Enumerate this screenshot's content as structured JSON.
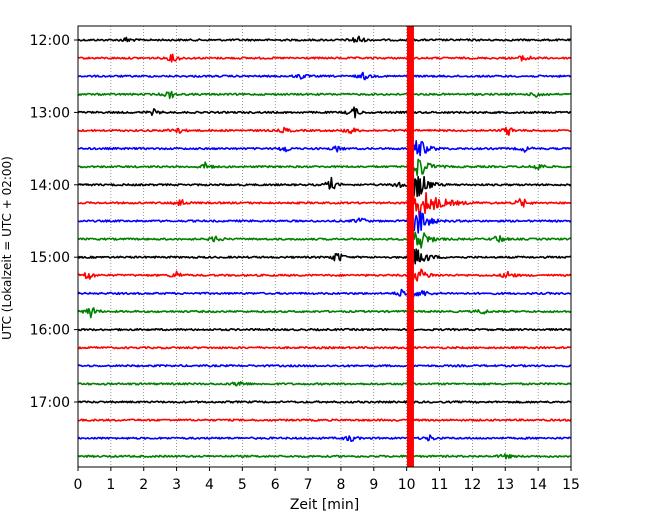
{
  "chart_data": {
    "type": "line",
    "subtype": "helicorder",
    "xlabel": "Zeit  [min]",
    "ylabel": "UTC (Lokalzeit = UTC + 02:00)",
    "xlim": [
      0,
      15
    ],
    "xticks": [
      "0",
      "1",
      "2",
      "3",
      "4",
      "5",
      "6",
      "7",
      "8",
      "9",
      "10",
      "11",
      "12",
      "13",
      "14",
      "15"
    ],
    "ytick_labels": [
      "12:00",
      "13:00",
      "14:00",
      "15:00",
      "16:00",
      "17:00"
    ],
    "ytick_rows": [
      0,
      4,
      8,
      12,
      16,
      20
    ],
    "row_minutes": 15,
    "grid": "vertical dotted",
    "colors": [
      "#000000",
      "#ff0000",
      "#0000ff",
      "#008000"
    ],
    "rows": [
      {
        "start": "12:00",
        "events": [
          {
            "x": 1.5,
            "a": 3
          },
          {
            "x": 8.5,
            "a": 6
          }
        ]
      },
      {
        "start": "12:15",
        "events": [
          {
            "x": 2.9,
            "a": 5
          },
          {
            "x": 13.6,
            "a": 5
          }
        ]
      },
      {
        "start": "12:30",
        "events": [
          {
            "x": 6.8,
            "a": 3
          },
          {
            "x": 8.7,
            "a": 4
          }
        ]
      },
      {
        "start": "12:45",
        "events": [
          {
            "x": 2.8,
            "a": 5
          },
          {
            "x": 14.0,
            "a": 4
          }
        ]
      },
      {
        "start": "13:00",
        "events": [
          {
            "x": 8.4,
            "a": 6
          },
          {
            "x": 2.3,
            "a": 3
          }
        ]
      },
      {
        "start": "13:15",
        "events": [
          {
            "x": 3.0,
            "a": 5
          },
          {
            "x": 6.3,
            "a": 3
          },
          {
            "x": 8.3,
            "a": 4
          },
          {
            "x": 13.1,
            "a": 5
          }
        ]
      },
      {
        "start": "13:30",
        "events": [
          {
            "x": 6.3,
            "a": 4
          },
          {
            "x": 7.9,
            "a": 3
          },
          {
            "x": 13.6,
            "a": 3
          }
        ]
      },
      {
        "start": "13:45",
        "events": [
          {
            "x": 3.9,
            "a": 5
          },
          {
            "x": 14.0,
            "a": 5
          }
        ]
      },
      {
        "start": "14:00",
        "events": [
          {
            "x": 7.7,
            "a": 7
          },
          {
            "x": 9.8,
            "a": 5
          }
        ]
      },
      {
        "start": "14:15",
        "events": [
          {
            "x": 3.1,
            "a": 5
          },
          {
            "x": 13.5,
            "a": 6
          }
        ]
      },
      {
        "start": "14:30",
        "events": [
          {
            "x": 8.6,
            "a": 4
          }
        ]
      },
      {
        "start": "14:45",
        "events": [
          {
            "x": 4.2,
            "a": 4
          },
          {
            "x": 12.8,
            "a": 5
          }
        ]
      },
      {
        "start": "15:00",
        "events": [
          {
            "x": 7.9,
            "a": 7
          }
        ]
      },
      {
        "start": "15:15",
        "events": [
          {
            "x": 0.3,
            "a": 6
          },
          {
            "x": 3.0,
            "a": 4
          },
          {
            "x": 13.1,
            "a": 5
          }
        ]
      },
      {
        "start": "15:30",
        "events": [
          {
            "x": 9.9,
            "a": 6
          }
        ]
      },
      {
        "start": "15:45",
        "events": [
          {
            "x": 0.4,
            "a": 7
          },
          {
            "x": 12.3,
            "a": 3
          }
        ]
      },
      {
        "start": "16:00",
        "events": []
      },
      {
        "start": "16:15",
        "events": []
      },
      {
        "start": "16:30",
        "events": []
      },
      {
        "start": "16:45",
        "events": [
          {
            "x": 4.9,
            "a": 4
          }
        ]
      },
      {
        "start": "17:00",
        "events": []
      },
      {
        "start": "17:15",
        "events": []
      },
      {
        "start": "17:30",
        "events": [
          {
            "x": 8.3,
            "a": 4
          },
          {
            "x": 10.7,
            "a": 3
          }
        ]
      },
      {
        "start": "17:45",
        "events": [
          {
            "x": 13.0,
            "a": 3
          }
        ]
      }
    ],
    "earthquake": {
      "x_start": 10.1,
      "first_row": "13:30",
      "last_row": "15:30",
      "coda_row": "14:15",
      "coda_end_x": 11.2
    }
  }
}
